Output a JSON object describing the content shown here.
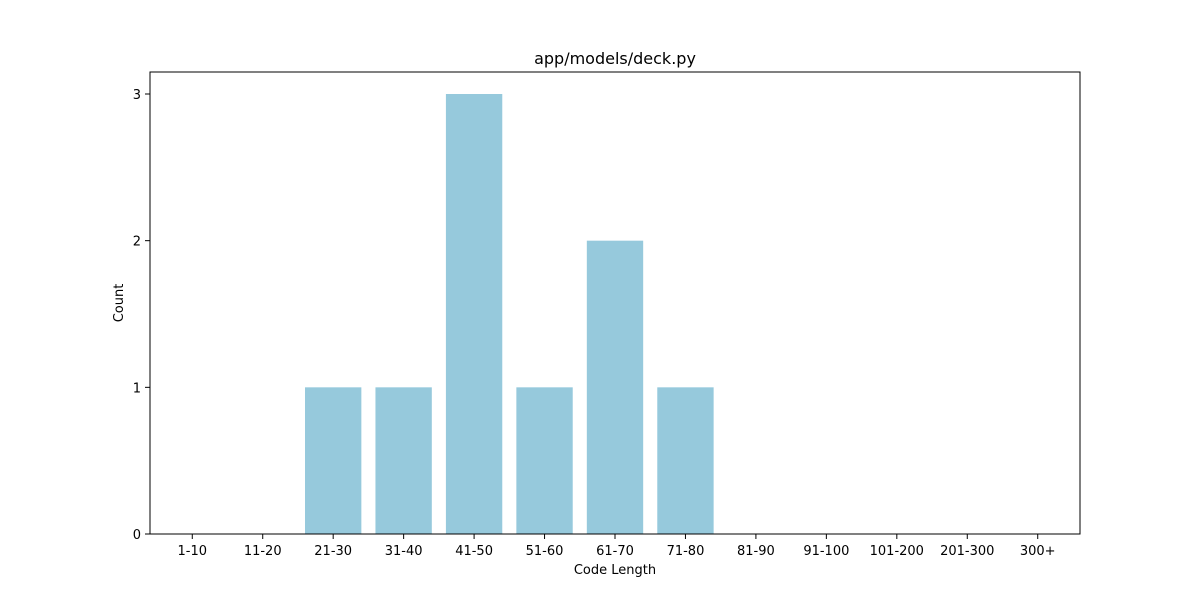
{
  "chart_data": {
    "type": "bar",
    "title": "app/models/deck.py",
    "xlabel": "Code Length",
    "ylabel": "Count",
    "categories": [
      "1-10",
      "11-20",
      "21-30",
      "31-40",
      "41-50",
      "51-60",
      "61-70",
      "71-80",
      "81-90",
      "91-100",
      "101-200",
      "201-300",
      "300+"
    ],
    "values": [
      0,
      0,
      1,
      1,
      3,
      1,
      2,
      1,
      0,
      0,
      0,
      0,
      0
    ],
    "ylim": [
      0,
      3.15
    ],
    "yticks": [
      0,
      1,
      2,
      3
    ],
    "bar_color": "#96c9dc",
    "grid": false,
    "legend": "none"
  }
}
